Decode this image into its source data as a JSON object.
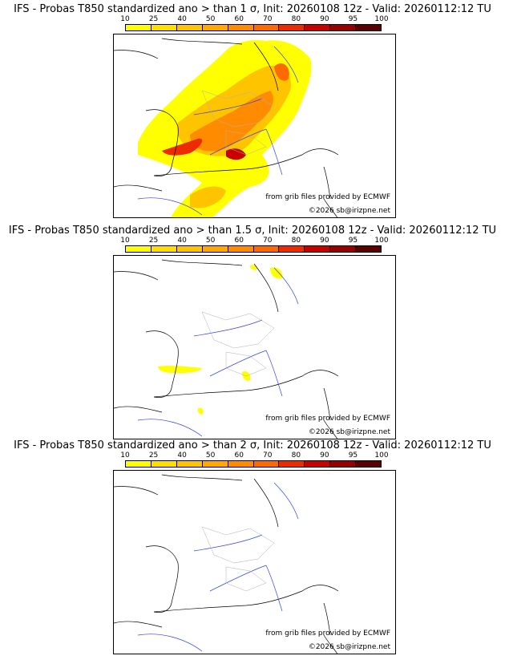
{
  "legend": {
    "ticks": [
      "10",
      "25",
      "40",
      "50",
      "60",
      "70",
      "80",
      "90",
      "95",
      "100"
    ],
    "colors": [
      "#ffff00",
      "#ffdf00",
      "#ffc400",
      "#ffa800",
      "#ff8c00",
      "#ff6a00",
      "#ee2a00",
      "#c80000",
      "#960000",
      "#5a0000"
    ]
  },
  "panels": [
    {
      "title": "IFS - Probas T850  standardized ano > than 1 σ, Init: 20260108 12z - Valid: 20260112:12 TU",
      "source": "from grib files provided by ECMWF",
      "copyright": "©2026 sb@irizpne.net"
    },
    {
      "title": "IFS - Probas T850  standardized ano > than 1.5 σ, Init: 20260108 12z - Valid: 20260112:12 TU",
      "source": "from grib files provided by ECMWF",
      "copyright": "©2026 sb@irizpne.net"
    },
    {
      "title": "IFS - Probas T850  standardized ano > than 2 σ, Init: 20260108 12z - Valid: 20260112:12 TU",
      "source": "from grib files provided by ECMWF",
      "copyright": "©2026 sb@irizpne.net"
    }
  ],
  "colors": {
    "coast": "#000000",
    "river": "#3344dd",
    "border": "#b0b0b0"
  }
}
